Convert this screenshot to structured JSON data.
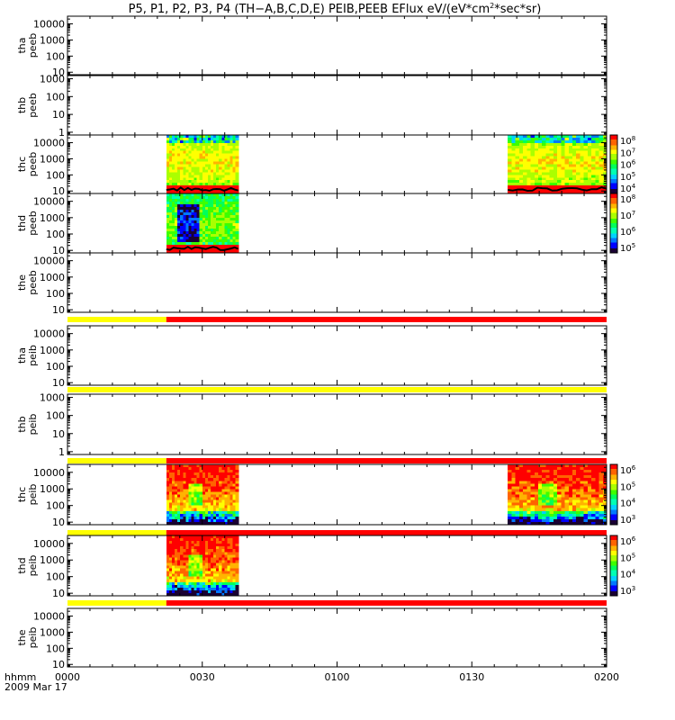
{
  "title": {
    "prefix": "P5, P1, P2, P3, P4 (TH−A,B,C,D,E) PEIB,PEEB EFlux eV/(eV*cm",
    "exp": "2",
    "suffix": "*sec*sr)"
  },
  "time_axis": {
    "label": "hhmm",
    "date": "2009 Mar 17",
    "ticks": [
      "0000",
      "0030",
      "0100",
      "0130",
      "0200"
    ],
    "range_minutes": [
      0,
      120
    ]
  },
  "colors": {
    "mode_yellow": "#ffff00",
    "mode_red": "#ff0000",
    "spectrogram_scale": [
      "#1a0033",
      "#0000ff",
      "#0078ff",
      "#00d2ff",
      "#00ffb4",
      "#00ff5a",
      "#3cff00",
      "#aaff00",
      "#ffff00",
      "#ffb400",
      "#ff6400",
      "#ff0000"
    ]
  },
  "chart_data": {
    "type": "heatmap",
    "title": "P5, P1, P2, P3, P4 (TH-A,B,C,D,E) PEIB,PEEB EFlux eV/(eV*cm^2*sec*sr)",
    "x_unit": "minutes after 2009-03-17 00:00 UT",
    "xlim": [
      0,
      120
    ],
    "panels": [
      {
        "id": "tha-peeb",
        "probe": "tha",
        "product": "peeb",
        "y_ticks": [
          "10000",
          "1000",
          "100",
          "10"
        ],
        "ylim_eV": [
          7,
          30000
        ],
        "data_intervals": [],
        "colorbar": null,
        "mode_bar": null
      },
      {
        "id": "thb-peeb",
        "probe": "thb",
        "product": "peeb",
        "y_ticks": [
          "1000",
          "100",
          "10",
          "1"
        ],
        "ylim_eV": [
          0.7,
          1500
        ],
        "data_intervals": [],
        "colorbar": null,
        "mode_bar": null
      },
      {
        "id": "thc-peeb",
        "probe": "thc",
        "product": "peeb",
        "y_ticks": [
          "10000",
          "1000",
          "100",
          "10"
        ],
        "ylim_eV": [
          7,
          30000
        ],
        "data_intervals": [
          {
            "start": 22,
            "end": 38
          },
          {
            "start": 98,
            "end": 120
          }
        ],
        "colorbar": {
          "exponents": [
            "8",
            "7",
            "6",
            "5",
            "4"
          ]
        },
        "mode_bar": null
      },
      {
        "id": "thd-peeb",
        "probe": "thd",
        "product": "peeb",
        "y_ticks": [
          "10000",
          "1000",
          "100",
          "10"
        ],
        "ylim_eV": [
          7,
          30000
        ],
        "data_intervals": [
          {
            "start": 22,
            "end": 38
          }
        ],
        "colorbar": {
          "exponents": [
            "8",
            "7",
            "6",
            "5"
          ]
        },
        "mode_bar": null
      },
      {
        "id": "the-peeb",
        "probe": "the",
        "product": "peeb",
        "y_ticks": [
          "10000",
          "1000",
          "100",
          "10"
        ],
        "ylim_eV": [
          7,
          30000
        ],
        "data_intervals": [],
        "colorbar": null,
        "mode_bar": [
          {
            "start": 0,
            "end": 22,
            "mode": "yellow"
          },
          {
            "start": 22,
            "end": 120,
            "mode": "red"
          }
        ]
      },
      {
        "id": "tha-peib",
        "probe": "tha",
        "product": "peib",
        "y_ticks": [
          "10000",
          "1000",
          "100",
          "10"
        ],
        "ylim_eV": [
          7,
          30000
        ],
        "data_intervals": [],
        "colorbar": null,
        "mode_bar": [
          {
            "start": 0,
            "end": 120,
            "mode": "yellow"
          }
        ]
      },
      {
        "id": "thb-peib",
        "probe": "thb",
        "product": "peib",
        "y_ticks": [
          "1000",
          "100",
          "10",
          "1"
        ],
        "ylim_eV": [
          0.7,
          1500
        ],
        "data_intervals": [],
        "colorbar": null,
        "mode_bar": [
          {
            "start": 0,
            "end": 22,
            "mode": "yellow"
          },
          {
            "start": 22,
            "end": 120,
            "mode": "red"
          }
        ]
      },
      {
        "id": "thc-peib",
        "probe": "thc",
        "product": "peib",
        "y_ticks": [
          "10000",
          "1000",
          "100",
          "10"
        ],
        "ylim_eV": [
          7,
          30000
        ],
        "data_intervals": [
          {
            "start": 22,
            "end": 38
          },
          {
            "start": 98,
            "end": 120
          }
        ],
        "colorbar": {
          "exponents": [
            "6",
            "5",
            "4",
            "3"
          ]
        },
        "mode_bar": [
          {
            "start": 0,
            "end": 22,
            "mode": "yellow"
          },
          {
            "start": 22,
            "end": 120,
            "mode": "red"
          }
        ]
      },
      {
        "id": "thd-peib",
        "probe": "thd",
        "product": "peib",
        "y_ticks": [
          "10000",
          "1000",
          "100",
          "10"
        ],
        "ylim_eV": [
          7,
          30000
        ],
        "data_intervals": [
          {
            "start": 22,
            "end": 38
          }
        ],
        "colorbar": {
          "exponents": [
            "6",
            "5",
            "4",
            "3"
          ]
        },
        "mode_bar": [
          {
            "start": 0,
            "end": 22,
            "mode": "yellow"
          },
          {
            "start": 22,
            "end": 120,
            "mode": "red"
          }
        ]
      },
      {
        "id": "the-peib",
        "probe": "the",
        "product": "peib",
        "y_ticks": [
          "10000",
          "1000",
          "100",
          "10"
        ],
        "ylim_eV": [
          7,
          30000
        ],
        "data_intervals": [],
        "colorbar": null,
        "mode_bar": null
      }
    ]
  }
}
